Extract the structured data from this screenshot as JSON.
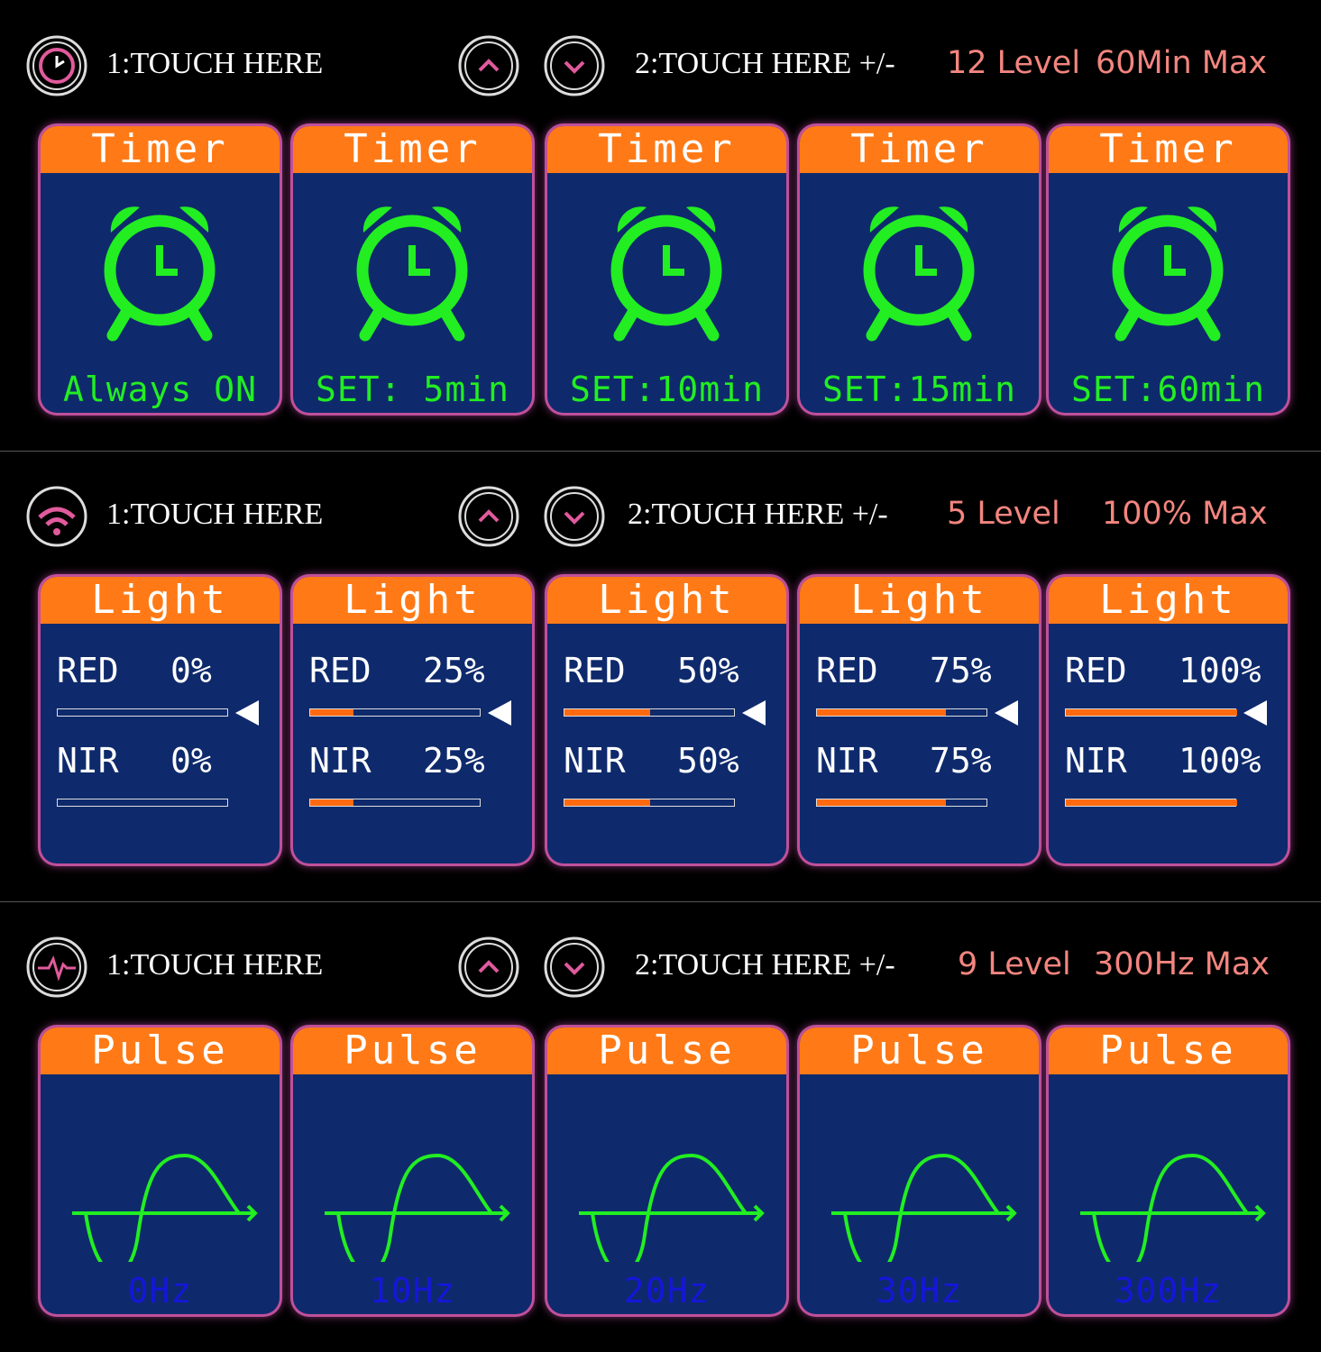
{
  "sections": [
    {
      "header": {
        "touch1": "1:TOUCH HERE",
        "touch2": "2:TOUCH HERE +/-",
        "level": "12 Level",
        "max": "60Min Max"
      },
      "cards": [
        {
          "title": "Timer",
          "label": "Always ON"
        },
        {
          "title": "Timer",
          "label": "SET: 5min"
        },
        {
          "title": "Timer",
          "label": "SET:10min"
        },
        {
          "title": "Timer",
          "label": "SET:15min"
        },
        {
          "title": "Timer",
          "label": "SET:60min"
        }
      ]
    },
    {
      "header": {
        "touch1": "1:TOUCH HERE",
        "touch2": "2:TOUCH HERE +/-",
        "level": "5 Level",
        "max": "100% Max"
      },
      "cards": [
        {
          "title": "Light",
          "red": {
            "name": "RED",
            "value": 0,
            "label": "0%"
          },
          "nir": {
            "name": "NIR",
            "value": 0,
            "label": "0%"
          }
        },
        {
          "title": "Light",
          "red": {
            "name": "RED",
            "value": 25,
            "label": "25%"
          },
          "nir": {
            "name": "NIR",
            "value": 25,
            "label": "25%"
          }
        },
        {
          "title": "Light",
          "red": {
            "name": "RED",
            "value": 50,
            "label": "50%"
          },
          "nir": {
            "name": "NIR",
            "value": 50,
            "label": "50%"
          }
        },
        {
          "title": "Light",
          "red": {
            "name": "RED",
            "value": 75,
            "label": "75%"
          },
          "nir": {
            "name": "NIR",
            "value": 75,
            "label": "75%"
          }
        },
        {
          "title": "Light",
          "red": {
            "name": "RED",
            "value": 100,
            "label": "100%"
          },
          "nir": {
            "name": "NIR",
            "value": 100,
            "label": "100%"
          }
        }
      ]
    },
    {
      "header": {
        "touch1": "1:TOUCH HERE",
        "touch2": "2:TOUCH HERE +/-",
        "level": "9 Level",
        "max": "300Hz Max"
      },
      "cards": [
        {
          "title": "Pulse",
          "label": "0Hz"
        },
        {
          "title": "Pulse",
          "label": "10Hz"
        },
        {
          "title": "Pulse",
          "label": "20Hz"
        },
        {
          "title": "Pulse",
          "label": "30Hz"
        },
        {
          "title": "Pulse",
          "label": "300Hz"
        }
      ]
    }
  ]
}
